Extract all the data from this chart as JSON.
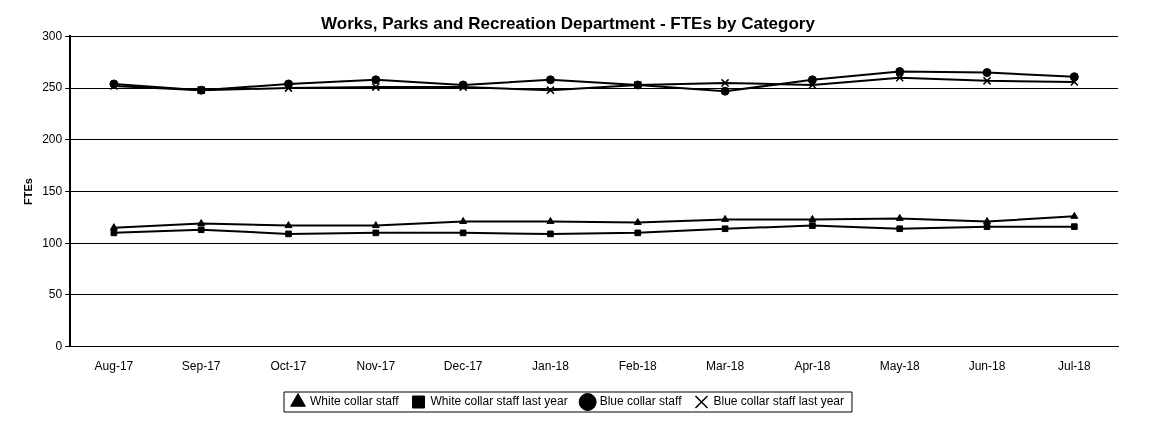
{
  "chart_data": {
    "type": "line",
    "title": "Works, Parks and Recreation Department - FTEs by Category",
    "ylabel": "FTEs",
    "categories": [
      "Aug-17",
      "Sep-17",
      "Oct-17",
      "Nov-17",
      "Dec-17",
      "Jan-18",
      "Feb-18",
      "Mar-18",
      "Apr-18",
      "May-18",
      "Jun-18",
      "Jul-18"
    ],
    "series": [
      {
        "name": "White collar staff",
        "color": "#000000",
        "marker": "triangle",
        "values": [
          115,
          119,
          117,
          117,
          121,
          121,
          120,
          123,
          123,
          124,
          121,
          126
        ]
      },
      {
        "name": "White collar staff last year",
        "color": "#000000",
        "marker": "square",
        "values": [
          110,
          113,
          109,
          110,
          110,
          109,
          110,
          114,
          117,
          114,
          116,
          116
        ]
      },
      {
        "name": "Blue collar staff",
        "color": "#000000",
        "marker": "circle",
        "values": [
          254,
          248,
          254,
          258,
          253,
          258,
          253,
          247,
          258,
          266,
          265,
          261
        ]
      },
      {
        "name": "Blue collar staff last year",
        "color": "#000000",
        "marker": "cross",
        "values": [
          252,
          248,
          250,
          251,
          251,
          248,
          253,
          255,
          253,
          260,
          257,
          256
        ]
      }
    ],
    "ylim": [
      0,
      300
    ],
    "yticks": [
      0,
      50,
      100,
      150,
      200,
      250,
      300
    ],
    "grid": "y",
    "legend": "bottom",
    "line_style": "solid"
  }
}
